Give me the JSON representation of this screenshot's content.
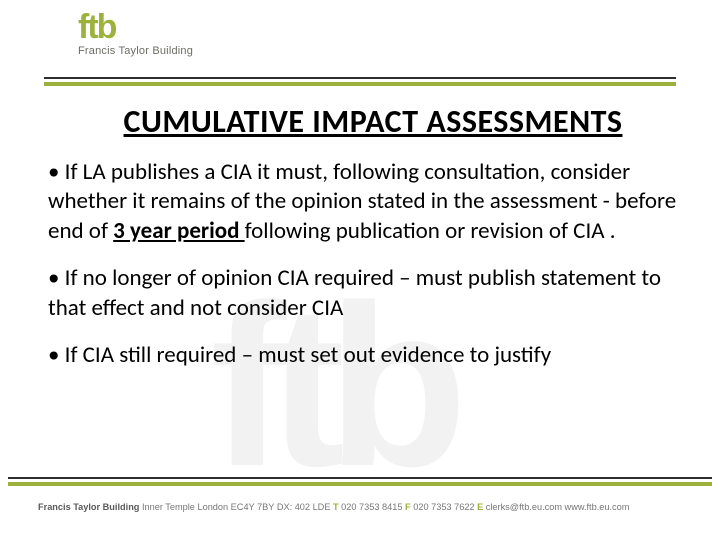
{
  "logo": {
    "wordmark": "ftb",
    "subtitle": "Francis Taylor Building",
    "accent_color": "#9cb23c",
    "sub_color": "#6b6e63"
  },
  "title": "CUMULATIVE IMPACT ASSESSMENTS",
  "bullets": [
    {
      "leading": "• If LA publishes a CIA it must, following consultation, consider whether it remains of the opinion stated in the assessment - before end of ",
      "emph": "3 year period ",
      "trailing": "following publication or revision of CIA ."
    },
    {
      "leading": "• If no longer of opinion CIA required – must publish statement to that effect and not consider CIA",
      "emph": "",
      "trailing": ""
    },
    {
      "leading": "• If CIA still required – must set out evidence to justify",
      "emph": "",
      "trailing": ""
    }
  ],
  "footer": {
    "org": "Francis Taylor Building",
    "address": " Inner Temple London EC4Y 7BY DX: 402 LDE ",
    "t_label": "T",
    "t_value": " 020 7353 8415 ",
    "f_label": "F",
    "f_value": " 020 7353 7622 ",
    "e_label": "E",
    "e_value": " clerks@ftb.eu.com  www.ftb.eu.com"
  },
  "rules": {
    "dark": "#2e2e2e",
    "green": "#9cb23c"
  },
  "watermark_color": "#f2f2f2"
}
